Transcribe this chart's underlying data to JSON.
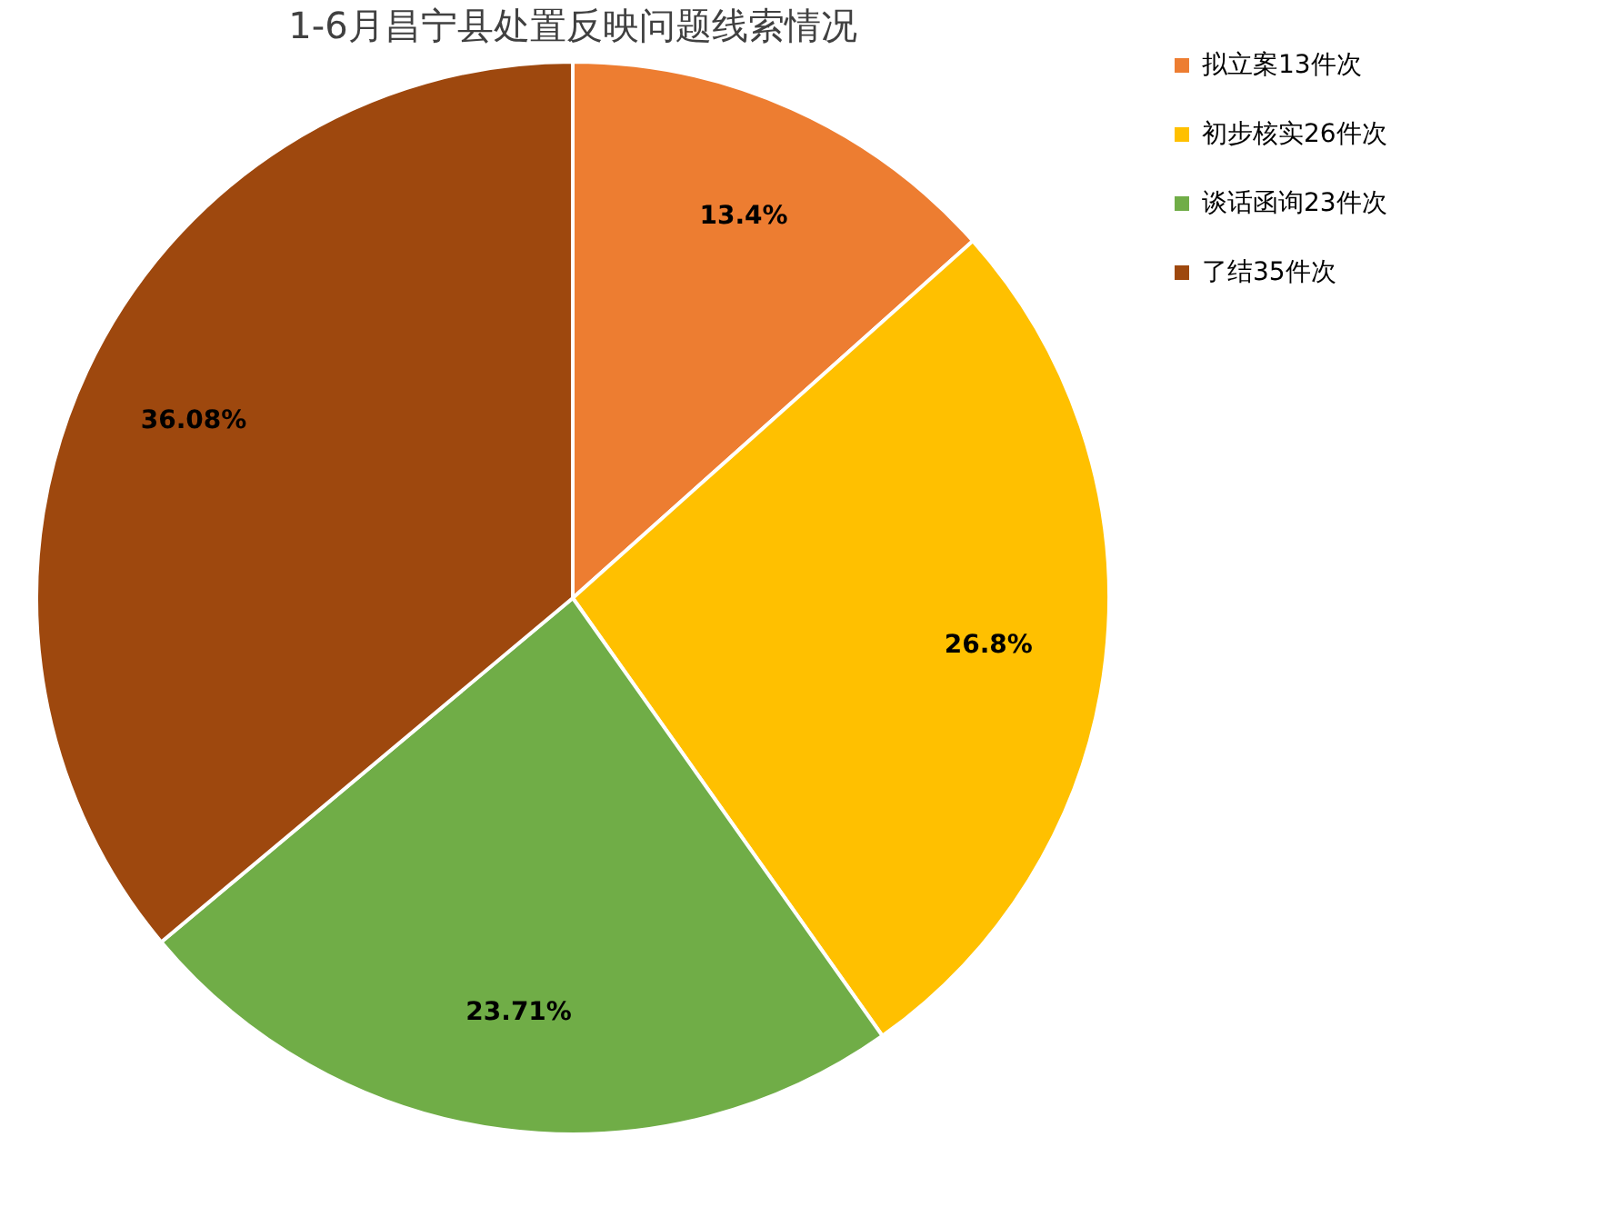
{
  "chart_data": {
    "type": "pie",
    "title": "1-6月昌宁县处置反映问题线索情况",
    "categories": [
      "拟立案13件次",
      "初步核实26件次",
      "谈话函询23件次",
      "了结35件次"
    ],
    "values": [
      13.4,
      26.8,
      23.71,
      36.08
    ],
    "value_labels": [
      "13.4%",
      "26.8%",
      "23.71%",
      "36.08%"
    ],
    "colors": [
      "#ed7d31",
      "#ffc000",
      "#70ad47",
      "#9e480e"
    ],
    "legend": "right"
  }
}
